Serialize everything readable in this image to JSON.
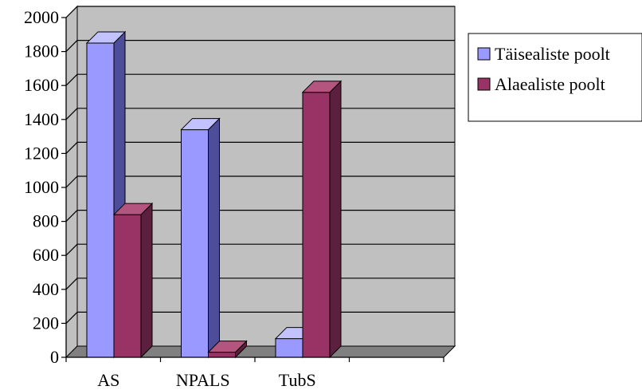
{
  "chart_data": {
    "type": "bar",
    "style": "3d-clustered-column",
    "categories": [
      "AS",
      "NPALS",
      "TubS",
      ""
    ],
    "series": [
      {
        "name": "Täisealiste poolt",
        "values": [
          1850,
          1340,
          110,
          null
        ],
        "color": "#9999ff",
        "side_color": "#4d4d99",
        "top_color": "#c2c2ff"
      },
      {
        "name": "Alaealiste poolt",
        "values": [
          840,
          30,
          1560,
          null
        ],
        "color": "#993366",
        "side_color": "#5c1f3d",
        "top_color": "#b3557f"
      }
    ],
    "y_ticks": [
      "0",
      "200",
      "400",
      "600",
      "800",
      "1000",
      "1200",
      "1400",
      "1600",
      "1800",
      "2000"
    ],
    "ylim": [
      0,
      2000
    ],
    "grid": true,
    "wall_color": "#c0c0c0",
    "floor_color": "#808080",
    "legend_position": "right"
  }
}
